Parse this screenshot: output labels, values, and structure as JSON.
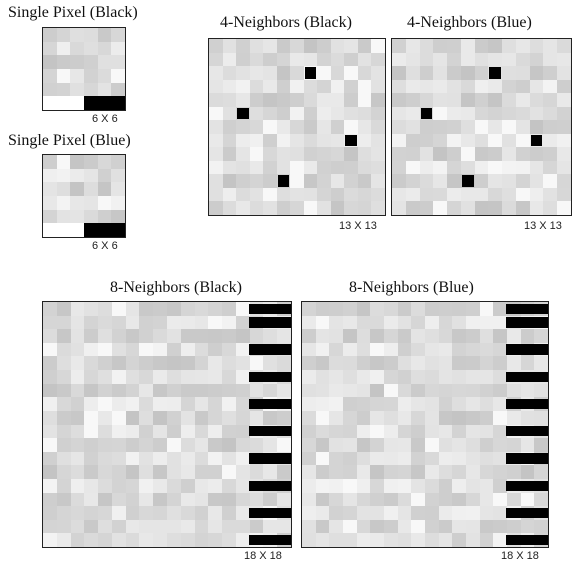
{
  "panels": {
    "single_black": {
      "title": "Single Pixel (Black)",
      "size_label": "6 X 6",
      "n": 6,
      "pattern": "single",
      "mark_color": "#000000"
    },
    "single_blue": {
      "title": "Single Pixel (Blue)",
      "size_label": "6 X 6",
      "n": 6,
      "pattern": "single",
      "mark_color": "#000000"
    },
    "four_black": {
      "title": "4-Neighbors (Black)",
      "size_label": "13 X 13",
      "n": 13,
      "pattern": "four",
      "mark_color": "#000000"
    },
    "four_blue": {
      "title": "4-Neighbors (Blue)",
      "size_label": "13 X 13",
      "n": 13,
      "pattern": "four",
      "mark_color": "#000000"
    },
    "eight_black": {
      "title": "8-Neighbors (Black)",
      "size_label": "18 X 18",
      "n": 18,
      "pattern": "eight",
      "mark_color": "#000000"
    },
    "eight_blue": {
      "title": "8-Neighbors (Blue)",
      "size_label": "18 X 18",
      "n": 18,
      "pattern": "eight",
      "mark_color": "#000000"
    }
  },
  "colors": {
    "background_gray": "#d8d8d8",
    "highlight": "#ffffff",
    "mark": "#000000"
  }
}
